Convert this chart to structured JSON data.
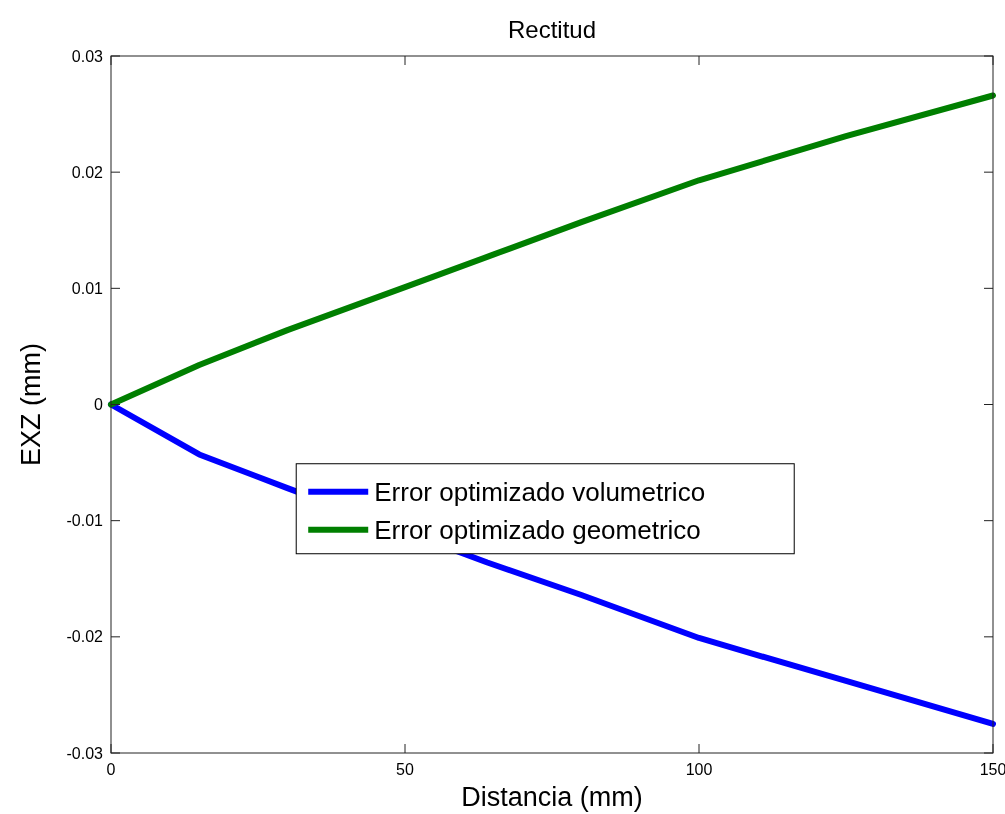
{
  "chart_data": {
    "type": "line",
    "title": "Rectitud",
    "xlabel": "Distancia (mm)",
    "ylabel": "EXZ (mm)",
    "x": [
      0,
      15,
      30,
      50,
      65,
      80,
      100,
      125,
      150
    ],
    "series": [
      {
        "name": "Error optimizado volumetrico",
        "color": "#0000ff",
        "x": [
          0,
          15,
          30,
          64,
          80,
          100,
          125,
          150
        ],
        "values": [
          0,
          -0.0043,
          -0.0072,
          -0.0136,
          -0.0164,
          -0.0201,
          -0.0238,
          -0.0275
        ]
      },
      {
        "name": "Error optimizado geometrico",
        "color": "#007f00",
        "values": [
          0,
          0.0034,
          0.0064,
          0.0101,
          0.0129,
          0.0157,
          0.0193,
          0.0231,
          0.0266
        ]
      }
    ],
    "xlim": [
      0,
      150
    ],
    "xticks": [
      0,
      50,
      100,
      150
    ],
    "ylim": [
      -0.03,
      0.03
    ],
    "yticks": [
      -0.03,
      -0.02,
      -0.01,
      0,
      0.01,
      0.02,
      0.03
    ],
    "grid": false,
    "legend": "center",
    "marker": "none",
    "line_style": "solid"
  }
}
